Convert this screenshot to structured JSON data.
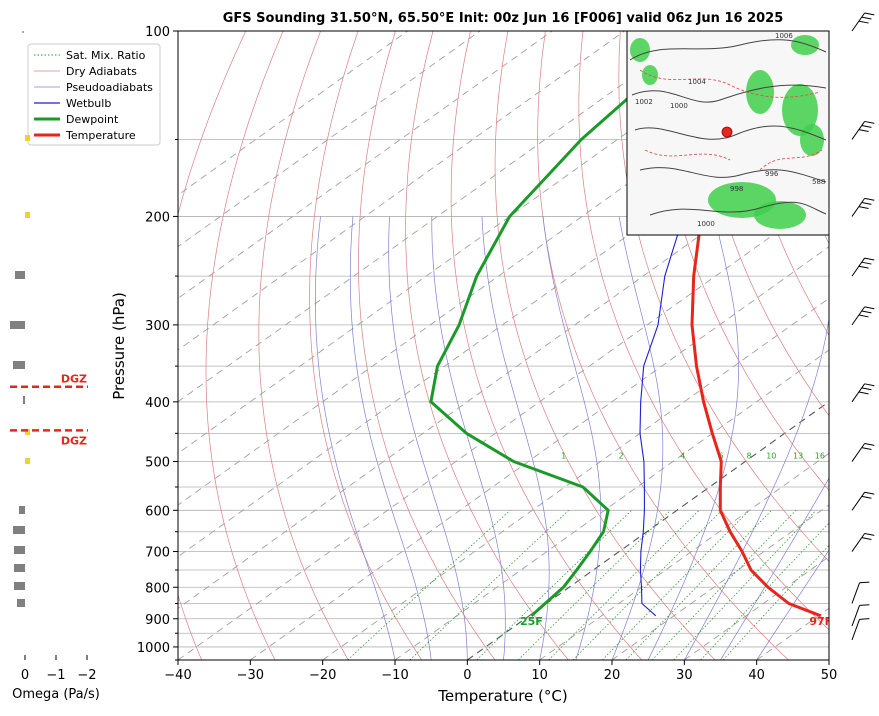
{
  "title": "GFS Sounding 31.50°N, 65.50°E Init: 00z Jun 16 [F006] valid 06z Jun 16 2025",
  "colors": {
    "temperature": "#e8251b",
    "dewpoint": "#1b9a2a",
    "wetbulb": "#1f1fd6",
    "dry_adiabat": "#d98080",
    "pseudoadiabat": "#8080d0",
    "mixing_ratio": "#2ca02c",
    "isotherm": "#b0b0b0",
    "dgz": "#e8251b",
    "omega_bar": "#808080",
    "omega_dot": "#f2d22a"
  },
  "legend": {
    "placement": "top-left",
    "items": [
      {
        "label": "Sat. Mix. Ratio",
        "key": "mixing_ratio",
        "style": "dotted"
      },
      {
        "label": "Dry Adiabats",
        "key": "dry_adiabat",
        "style": "solid-thin"
      },
      {
        "label": "Pseudoadiabats",
        "key": "pseudoadiabat",
        "style": "solid-thin"
      },
      {
        "label": "Wetbulb",
        "key": "wetbulb",
        "style": "solid"
      },
      {
        "label": "Dewpoint",
        "key": "dewpoint",
        "style": "solid-thick"
      },
      {
        "label": "Temperature",
        "key": "temperature",
        "style": "solid-thick"
      }
    ]
  },
  "omega": {
    "xlabel": "Omega (Pa/s)",
    "ticks": [
      "0",
      "−1",
      "−2"
    ]
  },
  "dgz": {
    "top_label": "DGZ",
    "bottom_label": "DGZ",
    "top_hpa": 378,
    "bottom_hpa": 445
  },
  "surface": {
    "temperature_label": "97F",
    "dewpoint_label": "25F"
  },
  "inset_map": {
    "labels": [
      "1006",
      "1004",
      "1002",
      "1000",
      "996",
      "998",
      "1000",
      "588"
    ]
  },
  "chart_data": {
    "type": "line",
    "subtype": "skew-t log-p",
    "title": "GFS Sounding 31.50°N, 65.50°E Init: 00z Jun 16 [F006] valid 06z Jun 16 2025",
    "xlabel": "Temperature (°C)",
    "ylabel": "Pressure (hPa)",
    "xlim": [
      -40,
      50
    ],
    "ylim": [
      1050,
      100
    ],
    "y_scale": "log",
    "grid": true,
    "x_ticks": [
      -40,
      -30,
      -20,
      -10,
      0,
      10,
      20,
      30,
      40,
      50
    ],
    "y_ticks": [
      100,
      200,
      300,
      400,
      500,
      600,
      700,
      800,
      900,
      1000
    ],
    "mixing_ratio_labels": [
      "1",
      "2",
      "4",
      "6",
      "8",
      "10",
      "13",
      "16",
      "20",
      "24",
      "30",
      "36"
    ],
    "series": [
      {
        "name": "Temperature",
        "key": "temperature",
        "points": [
          [
            890,
            40.3
          ],
          [
            850,
            33.5
          ],
          [
            800,
            27.5
          ],
          [
            750,
            21.8
          ],
          [
            700,
            17.0
          ],
          [
            650,
            11.5
          ],
          [
            600,
            6.0
          ],
          [
            550,
            1.5
          ],
          [
            500,
            -3.3
          ],
          [
            450,
            -10.0
          ],
          [
            400,
            -17.3
          ],
          [
            350,
            -25.2
          ],
          [
            300,
            -33.8
          ],
          [
            250,
            -43.0
          ],
          [
            200,
            -53.5
          ],
          [
            150,
            -61.0
          ],
          [
            100,
            -70.5
          ]
        ]
      },
      {
        "name": "Dewpoint",
        "key": "dewpoint",
        "points": [
          [
            890,
            0.3
          ],
          [
            800,
            -0.8
          ],
          [
            750,
            -2.3
          ],
          [
            700,
            -4.0
          ],
          [
            650,
            -6.0
          ],
          [
            600,
            -9.5
          ],
          [
            550,
            -17.5
          ],
          [
            500,
            -32.0
          ],
          [
            450,
            -44.0
          ],
          [
            400,
            -55.0
          ],
          [
            350,
            -61.0
          ],
          [
            300,
            -66.0
          ],
          [
            250,
            -73.0
          ],
          [
            200,
            -80.0
          ],
          [
            150,
            -85.0
          ],
          [
            100,
            -89.0
          ]
        ]
      },
      {
        "name": "Wetbulb",
        "key": "wetbulb",
        "points": [
          [
            890,
            17.5
          ],
          [
            850,
            13.2
          ],
          [
            800,
            10.0
          ],
          [
            750,
            6.5
          ],
          [
            700,
            3.0
          ],
          [
            650,
            -0.5
          ],
          [
            600,
            -4.5
          ],
          [
            550,
            -9.0
          ],
          [
            500,
            -14.0
          ],
          [
            450,
            -20.0
          ],
          [
            400,
            -26.0
          ],
          [
            350,
            -32.5
          ],
          [
            300,
            -38.5
          ],
          [
            250,
            -47.0
          ],
          [
            200,
            -56.0
          ],
          [
            150,
            -63.0
          ],
          [
            100,
            -71.5
          ]
        ]
      }
    ],
    "wind_barbs_hpa": [
      1000,
      925,
      850,
      700,
      600,
      500,
      400,
      300,
      250,
      200,
      150,
      100
    ]
  }
}
